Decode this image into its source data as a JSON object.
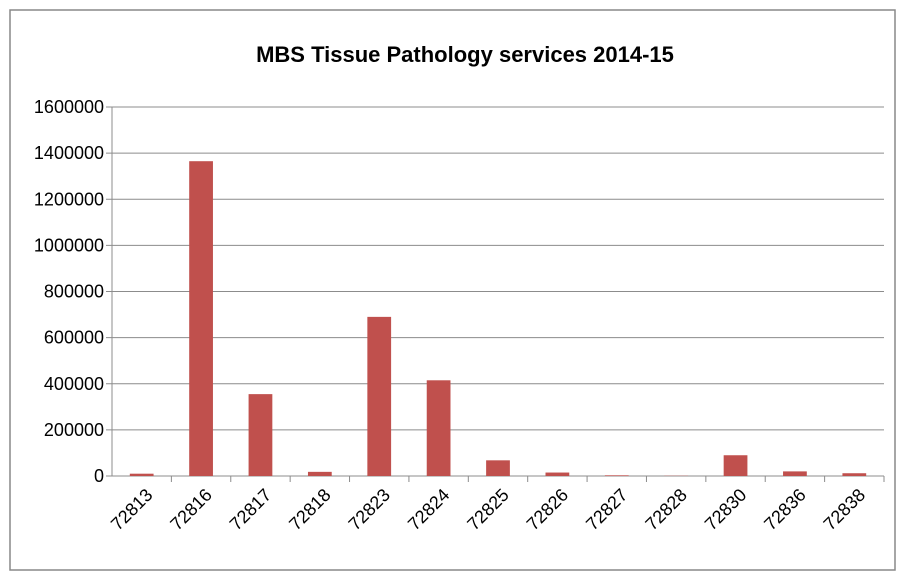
{
  "chart_data": {
    "type": "bar",
    "title": "MBS Tissue Pathology services 2014-15",
    "categories": [
      "72813",
      "72816",
      "72817",
      "72818",
      "72823",
      "72824",
      "72825",
      "72826",
      "72827",
      "72828",
      "72830",
      "72836",
      "72838"
    ],
    "values": [
      10000,
      1365000,
      355000,
      18000,
      690000,
      415000,
      68000,
      15000,
      3000,
      1000,
      90000,
      20000,
      12000
    ],
    "color": "#c0504d",
    "ylim": [
      0,
      1600000
    ],
    "yticks": [
      0,
      200000,
      400000,
      600000,
      800000,
      1000000,
      1200000,
      1400000,
      1600000
    ],
    "grid": true
  }
}
